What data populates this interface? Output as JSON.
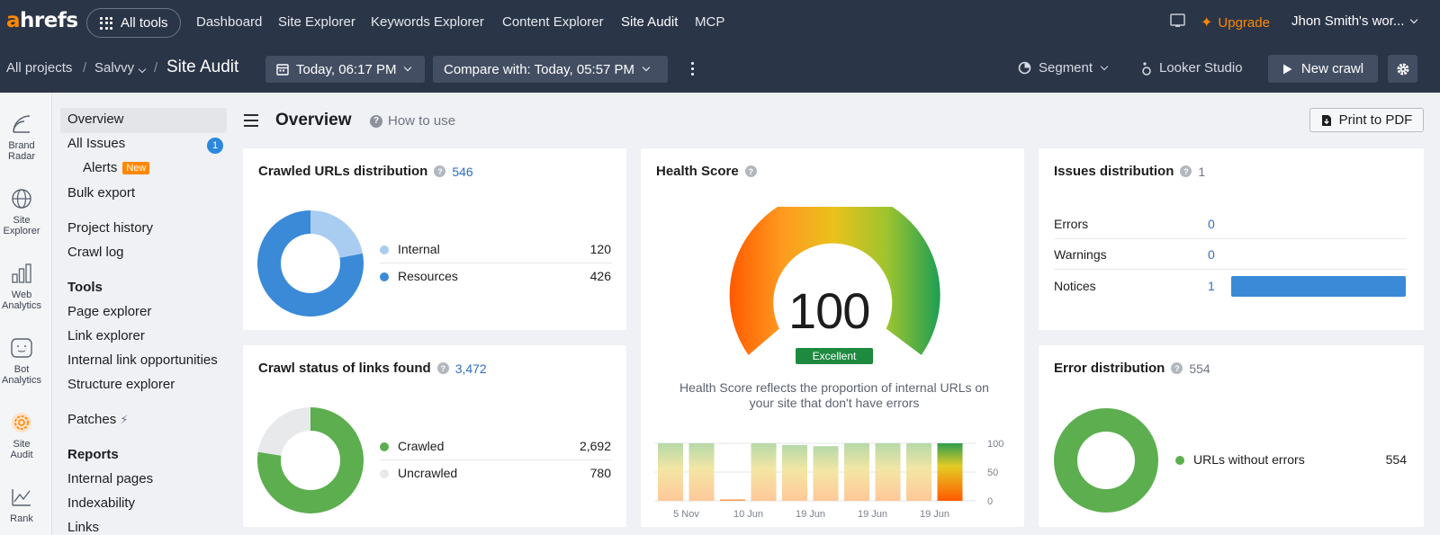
{
  "topbar": {
    "logo_a": "a",
    "logo_rest": "hrefs",
    "all_tools": "All tools",
    "nav": [
      "Dashboard",
      "Site Explorer",
      "Keywords Explorer",
      "Content Explorer",
      "Site Audit",
      "MCP"
    ],
    "active_nav": "Site Audit",
    "upgrade": "Upgrade",
    "workspace": "Jhon Smith's wor..."
  },
  "subbar": {
    "crumb_projects": "All projects",
    "crumb_sep": "/",
    "crumb_project": "Salvvy",
    "crumb_title": "Site Audit",
    "date_pill": "Today, 06:17 PM",
    "compare_pill": "Compare with: Today, 05:57 PM",
    "segment": "Segment",
    "looker": "Looker Studio",
    "new_crawl": "New crawl"
  },
  "rail": [
    {
      "label1": "Brand",
      "label2": "Radar",
      "icon": "brand-radar-icon"
    },
    {
      "label1": "Site",
      "label2": "Explorer",
      "icon": "globe-icon"
    },
    {
      "label1": "Web",
      "label2": "Analytics",
      "icon": "bar-chart-icon"
    },
    {
      "label1": "Bot",
      "label2": "Analytics",
      "icon": "bot-icon"
    },
    {
      "label1": "Site",
      "label2": "Audit",
      "icon": "site-audit-icon"
    },
    {
      "label1": "Rank",
      "label2": "",
      "icon": "rank-icon"
    }
  ],
  "menu": {
    "overview": "Overview",
    "all_issues": "All Issues",
    "all_issues_count": "1",
    "alerts": "Alerts",
    "alerts_badge": "New",
    "bulk_export": "Bulk export",
    "project_history": "Project history",
    "crawl_log": "Crawl log",
    "tools_head": "Tools",
    "page_explorer": "Page explorer",
    "link_explorer": "Link explorer",
    "internal_link": "Internal link opportunities",
    "structure_explorer": "Structure explorer",
    "patches": "Patches",
    "reports_head": "Reports",
    "internal_pages": "Internal pages",
    "indexability": "Indexability",
    "links": "Links"
  },
  "header": {
    "title": "Overview",
    "how_to": "How to use",
    "print": "Print to PDF"
  },
  "crawled": {
    "title": "Crawled URLs distribution",
    "total": "546",
    "rows": [
      {
        "label": "Internal",
        "value": "120",
        "color": "#a9cdf0"
      },
      {
        "label": "Resources",
        "value": "426",
        "color": "#3a8ad8"
      }
    ]
  },
  "crawl_status": {
    "title": "Crawl status of links found",
    "total": "3,472",
    "rows": [
      {
        "label": "Crawled",
        "value": "2,692",
        "color": "#5cae4f"
      },
      {
        "label": "Uncrawled",
        "value": "780",
        "color": "#e8e9eb"
      }
    ]
  },
  "health": {
    "title": "Health Score",
    "score": "100",
    "grade": "Excellent",
    "description": "Health Score reflects the proportion of internal URLs on your site that don't have errors",
    "x_labels": [
      "5 Nov",
      "10 Jun",
      "19 Jun",
      "19 Jun",
      "19 Jun"
    ],
    "y_labels": [
      "100",
      "50",
      "0"
    ]
  },
  "chart_data": {
    "type": "bar",
    "title": "Health Score",
    "ylim": [
      0,
      100
    ],
    "values": [
      100,
      100,
      2,
      100,
      97,
      95,
      100,
      100,
      100,
      100
    ],
    "x_labels": [
      "5 Nov",
      "10 Jun",
      "19 Jun",
      "19 Jun",
      "19 Jun"
    ]
  },
  "issues": {
    "title": "Issues distribution",
    "total": "1",
    "rows": [
      {
        "label": "Errors",
        "value": "0",
        "fraction": 0
      },
      {
        "label": "Warnings",
        "value": "0",
        "fraction": 0
      },
      {
        "label": "Notices",
        "value": "1",
        "fraction": 1
      }
    ],
    "bar_color": "#3a8ad8"
  },
  "errors": {
    "title": "Error distribution",
    "total": "554",
    "rows": [
      {
        "label": "URLs without errors",
        "value": "554",
        "color": "#5cae4f"
      }
    ]
  }
}
